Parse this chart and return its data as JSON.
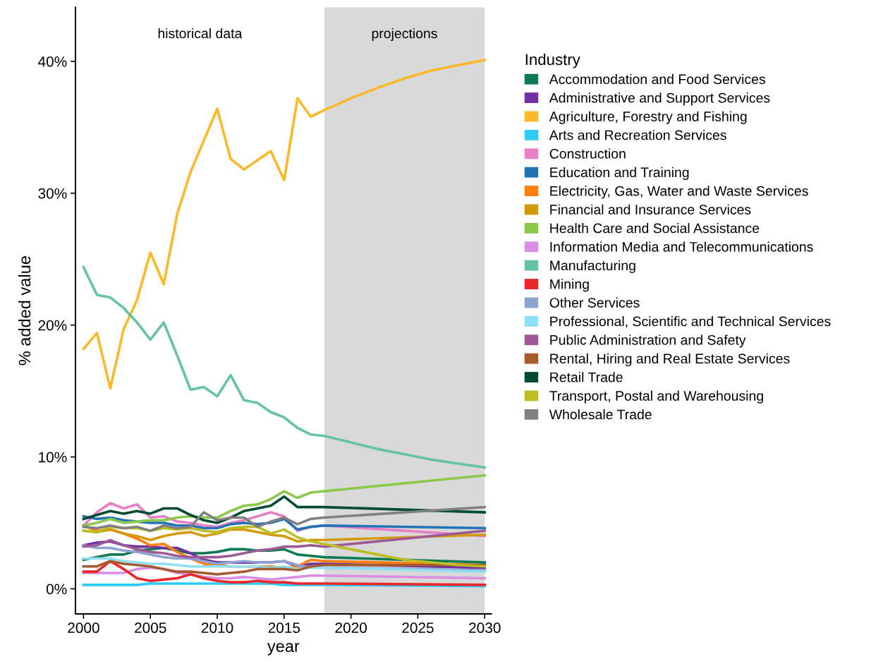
{
  "chart_data": {
    "type": "line",
    "xlabel": "year",
    "ylabel": "% added value",
    "legend_title": "Industry",
    "legend": "right",
    "grid": false,
    "xlim": [
      1999.4,
      2030.5
    ],
    "xticks": [
      2000,
      2005,
      2010,
      2015,
      2020,
      2025,
      2030
    ],
    "ylim": [
      -1.9,
      44.1
    ],
    "yticks": [
      {
        "value": 0,
        "label": "0%"
      },
      {
        "value": 10,
        "label": "10%"
      },
      {
        "value": 20,
        "label": "20%"
      },
      {
        "value": 30,
        "label": "30%"
      },
      {
        "value": 40,
        "label": "40%"
      }
    ],
    "bands": [
      {
        "axis": "x",
        "from": 2018,
        "to": 2030,
        "label": "projections",
        "color": "#d9d9d9"
      }
    ],
    "annotations": [
      "historical data"
    ],
    "series": [
      {
        "name": "Accommodation and Food Services",
        "color": "#117a55",
        "x": [
          2000,
          2001,
          2002,
          2003,
          2004,
          2005,
          2006,
          2007,
          2008,
          2009,
          2010,
          2011,
          2012,
          2013,
          2014,
          2015,
          2016,
          2017,
          2018,
          2030
        ],
        "values": [
          2.2,
          2.4,
          2.6,
          2.6,
          2.9,
          3.0,
          3.1,
          2.9,
          2.7,
          2.7,
          2.8,
          3.0,
          3.0,
          2.9,
          2.9,
          3.0,
          2.6,
          2.5,
          2.4,
          2.0
        ]
      },
      {
        "name": "Administrative and Support Services",
        "color": "#7030a0",
        "x": [
          2000,
          2001,
          2002,
          2003,
          2004,
          2005,
          2006,
          2007,
          2008,
          2009,
          2010,
          2011,
          2012,
          2013,
          2014,
          2015,
          2016,
          2017,
          2018,
          2030
        ],
        "values": [
          3.3,
          3.5,
          3.6,
          3.3,
          3.2,
          3.2,
          3.1,
          3.1,
          2.7,
          2.2,
          2.0,
          2.0,
          2.0,
          2.0,
          2.0,
          2.1,
          1.7,
          1.9,
          1.9,
          1.6
        ]
      },
      {
        "name": "Agriculture, Forestry and Fishing",
        "color": "#fbb829",
        "x": [
          2000,
          2001,
          2002,
          2003,
          2004,
          2005,
          2006,
          2007,
          2008,
          2009,
          2010,
          2011,
          2012,
          2013,
          2014,
          2015,
          2016,
          2017,
          2018,
          2020,
          2022,
          2024,
          2026,
          2028,
          2030
        ],
        "values": [
          18.2,
          19.4,
          15.2,
          19.7,
          21.9,
          25.5,
          23.1,
          28.4,
          31.6,
          34.0,
          36.4,
          32.6,
          31.8,
          32.5,
          33.2,
          31.0,
          37.2,
          35.8,
          36.3,
          37.2,
          38.0,
          38.7,
          39.3,
          39.7,
          40.1
        ]
      },
      {
        "name": "Arts and Recreation Services",
        "color": "#2ecbf2",
        "x": [
          2000,
          2001,
          2002,
          2003,
          2004,
          2005,
          2006,
          2007,
          2008,
          2009,
          2010,
          2011,
          2012,
          2013,
          2014,
          2015,
          2016,
          2017,
          2018,
          2030
        ],
        "values": [
          0.3,
          0.3,
          0.3,
          0.3,
          0.3,
          0.4,
          0.4,
          0.4,
          0.4,
          0.4,
          0.4,
          0.4,
          0.4,
          0.4,
          0.4,
          0.3,
          0.3,
          0.3,
          0.3,
          0.2
        ]
      },
      {
        "name": "Construction",
        "color": "#e77fc6",
        "x": [
          2000,
          2001,
          2002,
          2003,
          2004,
          2005,
          2006,
          2007,
          2008,
          2009,
          2010,
          2011,
          2012,
          2013,
          2014,
          2015,
          2016,
          2017,
          2018,
          2030
        ],
        "values": [
          4.8,
          5.8,
          6.5,
          6.1,
          6.4,
          5.4,
          5.5,
          5.1,
          5.0,
          4.8,
          4.7,
          5.0,
          5.2,
          5.5,
          5.8,
          5.5,
          4.4,
          4.7,
          4.8,
          4.0
        ]
      },
      {
        "name": "Education and Training",
        "color": "#2474b5",
        "x": [
          2000,
          2001,
          2002,
          2003,
          2004,
          2005,
          2006,
          2007,
          2008,
          2009,
          2010,
          2011,
          2012,
          2013,
          2014,
          2015,
          2016,
          2017,
          2018,
          2030
        ],
        "values": [
          5.5,
          5.3,
          5.4,
          5.2,
          5.1,
          5.0,
          5.0,
          4.8,
          4.8,
          4.6,
          4.6,
          4.9,
          5.0,
          4.9,
          5.0,
          5.3,
          4.5,
          4.7,
          4.8,
          4.6
        ]
      },
      {
        "name": "Electricity, Gas, Water and Waste Services",
        "color": "#ff7f0e",
        "x": [
          2000,
          2001,
          2002,
          2003,
          2004,
          2005,
          2006,
          2007,
          2008,
          2009,
          2010,
          2011,
          2012,
          2013,
          2014,
          2015,
          2016,
          2017,
          2018,
          2030
        ],
        "values": [
          4.8,
          4.4,
          4.5,
          4.2,
          3.8,
          3.3,
          3.4,
          2.8,
          2.3,
          1.9,
          1.8,
          1.7,
          1.7,
          1.7,
          1.7,
          1.6,
          1.7,
          2.2,
          2.1,
          1.8
        ]
      },
      {
        "name": "Financial and Insurance Services",
        "color": "#d39a0c",
        "x": [
          2000,
          2001,
          2002,
          2003,
          2004,
          2005,
          2006,
          2007,
          2008,
          2009,
          2010,
          2011,
          2012,
          2013,
          2014,
          2015,
          2016,
          2017,
          2018,
          2030
        ],
        "values": [
          4.4,
          4.3,
          4.5,
          4.2,
          4.0,
          3.7,
          4.0,
          4.2,
          4.3,
          4.0,
          4.2,
          4.5,
          4.5,
          4.3,
          4.1,
          4.0,
          3.6,
          3.7,
          3.7,
          4.1
        ]
      },
      {
        "name": "Health Care and Social Assistance",
        "color": "#8cc84b",
        "x": [
          2000,
          2001,
          2002,
          2003,
          2004,
          2005,
          2006,
          2007,
          2008,
          2009,
          2010,
          2011,
          2012,
          2013,
          2014,
          2015,
          2016,
          2017,
          2018,
          2030
        ],
        "values": [
          4.8,
          5.0,
          5.3,
          5.0,
          5.1,
          5.2,
          5.2,
          5.4,
          5.5,
          5.4,
          5.4,
          5.9,
          6.3,
          6.4,
          6.8,
          7.4,
          6.9,
          7.3,
          7.4,
          8.6
        ]
      },
      {
        "name": "Information Media and Telecommunications",
        "color": "#d98ee3",
        "x": [
          2000,
          2001,
          2002,
          2003,
          2004,
          2005,
          2006,
          2007,
          2008,
          2009,
          2010,
          2011,
          2012,
          2013,
          2014,
          2015,
          2016,
          2017,
          2018,
          2030
        ],
        "values": [
          1.2,
          1.2,
          1.2,
          1.2,
          1.5,
          1.6,
          1.5,
          1.2,
          1.1,
          0.9,
          0.8,
          0.8,
          0.9,
          0.8,
          0.7,
          0.8,
          0.9,
          1.0,
          1.0,
          0.8
        ]
      },
      {
        "name": "Manufacturing",
        "color": "#66c2a5",
        "x": [
          2000,
          2001,
          2002,
          2003,
          2004,
          2005,
          2006,
          2007,
          2008,
          2009,
          2010,
          2011,
          2012,
          2013,
          2014,
          2015,
          2016,
          2017,
          2018,
          2020,
          2022,
          2024,
          2026,
          2028,
          2030
        ],
        "values": [
          24.4,
          22.3,
          22.1,
          21.3,
          20.2,
          18.9,
          20.2,
          17.7,
          15.1,
          15.3,
          14.6,
          16.2,
          14.3,
          14.1,
          13.4,
          13.0,
          12.2,
          11.7,
          11.6,
          11.1,
          10.6,
          10.2,
          9.8,
          9.5,
          9.2
        ]
      },
      {
        "name": "Mining",
        "color": "#e8282b",
        "x": [
          2000,
          2001,
          2002,
          2003,
          2004,
          2005,
          2006,
          2007,
          2008,
          2009,
          2010,
          2011,
          2012,
          2013,
          2014,
          2015,
          2016,
          2017,
          2018,
          2030
        ],
        "values": [
          1.3,
          1.3,
          2.1,
          1.5,
          0.8,
          0.6,
          0.7,
          0.8,
          1.1,
          0.8,
          0.6,
          0.5,
          0.5,
          0.6,
          0.5,
          0.5,
          0.4,
          0.4,
          0.4,
          0.3
        ]
      },
      {
        "name": "Other Services",
        "color": "#8fa3d2",
        "x": [
          2000,
          2001,
          2002,
          2003,
          2004,
          2005,
          2006,
          2007,
          2008,
          2009,
          2010,
          2011,
          2012,
          2013,
          2014,
          2015,
          2016,
          2017,
          2018,
          2030
        ],
        "values": [
          3.3,
          3.1,
          3.1,
          2.9,
          2.8,
          2.6,
          2.4,
          2.3,
          2.3,
          2.1,
          1.9,
          2.0,
          2.1,
          2.0,
          2.0,
          2.1,
          1.8,
          1.6,
          1.6,
          1.4
        ]
      },
      {
        "name": "Professional, Scientific and Technical Services",
        "color": "#8fe0f5",
        "x": [
          2000,
          2001,
          2002,
          2003,
          2004,
          2005,
          2006,
          2007,
          2008,
          2009,
          2010,
          2011,
          2012,
          2013,
          2014,
          2015,
          2016,
          2017,
          2018,
          2030
        ],
        "values": [
          2.3,
          2.3,
          2.3,
          2.1,
          2.0,
          1.9,
          1.9,
          1.8,
          1.7,
          1.7,
          1.7,
          1.7,
          1.7,
          1.7,
          1.6,
          1.7,
          1.5,
          1.6,
          1.6,
          1.3
        ]
      },
      {
        "name": "Public Administration and Safety",
        "color": "#9e5a95",
        "x": [
          2000,
          2001,
          2002,
          2003,
          2004,
          2005,
          2006,
          2007,
          2008,
          2009,
          2010,
          2011,
          2012,
          2013,
          2014,
          2015,
          2016,
          2017,
          2018,
          2030
        ],
        "values": [
          3.2,
          3.3,
          3.7,
          3.3,
          3.0,
          2.8,
          2.7,
          2.5,
          2.4,
          2.4,
          2.4,
          2.5,
          2.7,
          2.9,
          3.0,
          3.2,
          3.2,
          3.3,
          3.2,
          4.4
        ]
      },
      {
        "name": "Rental, Hiring and Real Estate Services",
        "color": "#a65b2e",
        "x": [
          2000,
          2001,
          2002,
          2003,
          2004,
          2005,
          2006,
          2007,
          2008,
          2009,
          2010,
          2011,
          2012,
          2013,
          2014,
          2015,
          2016,
          2017,
          2018,
          2030
        ],
        "values": [
          1.7,
          1.7,
          2.1,
          1.9,
          1.8,
          1.7,
          1.5,
          1.3,
          1.3,
          1.2,
          1.1,
          1.2,
          1.3,
          1.5,
          1.5,
          1.5,
          1.4,
          1.7,
          1.8,
          1.8
        ]
      },
      {
        "name": "Retail Trade",
        "color": "#024b30",
        "x": [
          2000,
          2001,
          2002,
          2003,
          2004,
          2005,
          2006,
          2007,
          2008,
          2009,
          2010,
          2011,
          2012,
          2013,
          2014,
          2015,
          2016,
          2017,
          2018,
          2030
        ],
        "values": [
          5.3,
          5.6,
          5.9,
          5.7,
          5.9,
          5.7,
          6.1,
          6.1,
          5.6,
          5.2,
          5.0,
          5.4,
          5.9,
          6.1,
          6.3,
          7.0,
          6.2,
          6.2,
          6.2,
          5.8
        ]
      },
      {
        "name": "Transport, Postal and Warehousing",
        "color": "#bcbd22",
        "x": [
          2000,
          2001,
          2002,
          2003,
          2004,
          2005,
          2006,
          2007,
          2008,
          2009,
          2010,
          2011,
          2012,
          2013,
          2014,
          2015,
          2016,
          2017,
          2018,
          2020,
          2022,
          2024,
          2026,
          2028,
          2030
        ],
        "values": [
          4.4,
          4.3,
          4.7,
          4.6,
          4.6,
          4.4,
          4.6,
          4.5,
          4.6,
          4.4,
          4.3,
          4.6,
          4.7,
          4.7,
          4.2,
          4.5,
          3.9,
          3.6,
          3.4,
          3.0,
          2.6,
          2.2,
          2.0,
          1.8,
          1.7
        ]
      },
      {
        "name": "Wholesale Trade",
        "color": "#808080",
        "x": [
          2000,
          2001,
          2002,
          2003,
          2004,
          2005,
          2006,
          2007,
          2008,
          2009,
          2010,
          2011,
          2012,
          2013,
          2014,
          2015,
          2016,
          2017,
          2018,
          2030
        ],
        "values": [
          4.7,
          4.6,
          4.8,
          4.6,
          4.7,
          4.4,
          4.8,
          4.6,
          4.7,
          5.8,
          5.2,
          5.4,
          5.4,
          4.7,
          5.1,
          5.4,
          4.9,
          5.3,
          5.4,
          6.2
        ]
      }
    ]
  }
}
